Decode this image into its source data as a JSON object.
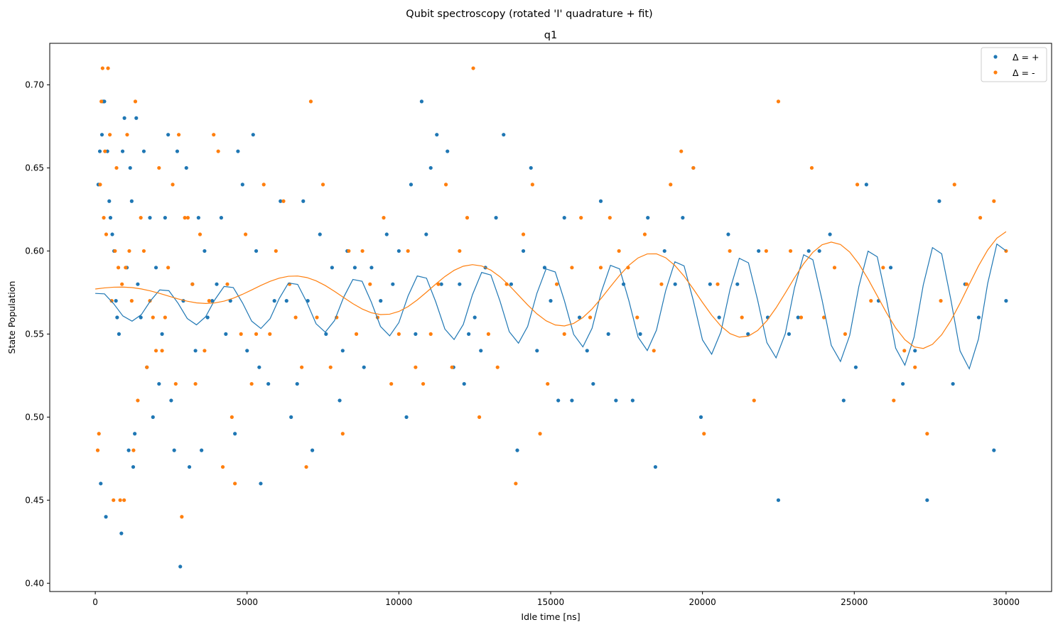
{
  "figure": {
    "suptitle": "Qubit spectroscopy (rotated 'I' quadrature + fit)"
  },
  "chart_data": {
    "type": "scatter",
    "title": "q1",
    "xlabel": "Idle time [ns]",
    "ylabel": "State Population",
    "xlim": [
      -1500,
      31500
    ],
    "ylim": [
      0.395,
      0.725
    ],
    "xticks": [
      0,
      5000,
      10000,
      15000,
      20000,
      25000,
      30000
    ],
    "yticks": [
      0.4,
      0.45,
      0.5,
      0.55,
      0.6,
      0.65,
      0.7
    ],
    "ytick_labels": [
      "0.40",
      "0.45",
      "0.50",
      "0.55",
      "0.60",
      "0.65",
      "0.70"
    ],
    "grid": false,
    "legend_position": "top-right",
    "colors": {
      "plus": "#1f77b4",
      "minus": "#ff7f0e"
    },
    "series": [
      {
        "name": "Δ = +",
        "kind": "points",
        "color": "#1f77b4",
        "points": [
          [
            100,
            0.64
          ],
          [
            150,
            0.66
          ],
          [
            180,
            0.46
          ],
          [
            220,
            0.67
          ],
          [
            260,
            0.69
          ],
          [
            300,
            0.69
          ],
          [
            350,
            0.44
          ],
          [
            400,
            0.66
          ],
          [
            460,
            0.63
          ],
          [
            500,
            0.62
          ],
          [
            560,
            0.61
          ],
          [
            620,
            0.6
          ],
          [
            680,
            0.57
          ],
          [
            720,
            0.56
          ],
          [
            780,
            0.55
          ],
          [
            860,
            0.43
          ],
          [
            900,
            0.66
          ],
          [
            960,
            0.68
          ],
          [
            1040,
            0.59
          ],
          [
            1100,
            0.48
          ],
          [
            1150,
            0.65
          ],
          [
            1200,
            0.63
          ],
          [
            1250,
            0.47
          ],
          [
            1300,
            0.49
          ],
          [
            1350,
            0.68
          ],
          [
            1400,
            0.58
          ],
          [
            1500,
            0.56
          ],
          [
            1600,
            0.66
          ],
          [
            1700,
            0.53
          ],
          [
            1800,
            0.62
          ],
          [
            1900,
            0.5
          ],
          [
            2000,
            0.59
          ],
          [
            2100,
            0.52
          ],
          [
            2200,
            0.55
          ],
          [
            2300,
            0.62
          ],
          [
            2400,
            0.67
          ],
          [
            2500,
            0.51
          ],
          [
            2600,
            0.48
          ],
          [
            2700,
            0.66
          ],
          [
            2800,
            0.41
          ],
          [
            2900,
            0.57
          ],
          [
            3000,
            0.65
          ],
          [
            3100,
            0.47
          ],
          [
            3200,
            0.58
          ],
          [
            3300,
            0.54
          ],
          [
            3400,
            0.62
          ],
          [
            3500,
            0.48
          ],
          [
            3600,
            0.6
          ],
          [
            3700,
            0.56
          ],
          [
            3850,
            0.57
          ],
          [
            4000,
            0.58
          ],
          [
            4150,
            0.62
          ],
          [
            4300,
            0.55
          ],
          [
            4450,
            0.57
          ],
          [
            4600,
            0.49
          ],
          [
            4700,
            0.66
          ],
          [
            4850,
            0.64
          ],
          [
            5000,
            0.54
          ],
          [
            5200,
            0.67
          ],
          [
            5300,
            0.6
          ],
          [
            5400,
            0.53
          ],
          [
            5450,
            0.46
          ],
          [
            5700,
            0.52
          ],
          [
            5900,
            0.57
          ],
          [
            6100,
            0.63
          ],
          [
            6300,
            0.57
          ],
          [
            6450,
            0.5
          ],
          [
            6650,
            0.52
          ],
          [
            6850,
            0.63
          ],
          [
            7000,
            0.57
          ],
          [
            7150,
            0.48
          ],
          [
            7400,
            0.61
          ],
          [
            7600,
            0.55
          ],
          [
            7800,
            0.59
          ],
          [
            8050,
            0.51
          ],
          [
            8150,
            0.54
          ],
          [
            8300,
            0.6
          ],
          [
            8550,
            0.59
          ],
          [
            8850,
            0.53
          ],
          [
            9100,
            0.59
          ],
          [
            9400,
            0.57
          ],
          [
            9600,
            0.61
          ],
          [
            9800,
            0.58
          ],
          [
            10000,
            0.6
          ],
          [
            10250,
            0.5
          ],
          [
            10400,
            0.64
          ],
          [
            10550,
            0.55
          ],
          [
            10750,
            0.69
          ],
          [
            10900,
            0.61
          ],
          [
            11050,
            0.65
          ],
          [
            11250,
            0.67
          ],
          [
            11400,
            0.58
          ],
          [
            11600,
            0.66
          ],
          [
            11800,
            0.53
          ],
          [
            12000,
            0.58
          ],
          [
            12150,
            0.52
          ],
          [
            12300,
            0.55
          ],
          [
            12500,
            0.56
          ],
          [
            12700,
            0.54
          ],
          [
            12850,
            0.59
          ],
          [
            13200,
            0.62
          ],
          [
            13450,
            0.67
          ],
          [
            13700,
            0.58
          ],
          [
            13900,
            0.48
          ],
          [
            14100,
            0.6
          ],
          [
            14350,
            0.65
          ],
          [
            14550,
            0.54
          ],
          [
            14800,
            0.59
          ],
          [
            15000,
            0.57
          ],
          [
            15250,
            0.51
          ],
          [
            15450,
            0.62
          ],
          [
            15700,
            0.51
          ],
          [
            15950,
            0.56
          ],
          [
            16200,
            0.54
          ],
          [
            16400,
            0.52
          ],
          [
            16650,
            0.63
          ],
          [
            16900,
            0.55
          ],
          [
            17150,
            0.51
          ],
          [
            17400,
            0.58
          ],
          [
            17700,
            0.51
          ],
          [
            17950,
            0.55
          ],
          [
            18200,
            0.62
          ],
          [
            18450,
            0.47
          ],
          [
            18750,
            0.6
          ],
          [
            19100,
            0.58
          ],
          [
            19350,
            0.62
          ],
          [
            19700,
            0.65
          ],
          [
            19950,
            0.5
          ],
          [
            20250,
            0.58
          ],
          [
            20550,
            0.56
          ],
          [
            20850,
            0.61
          ],
          [
            21150,
            0.58
          ],
          [
            21500,
            0.55
          ],
          [
            21850,
            0.6
          ],
          [
            22150,
            0.56
          ],
          [
            22500,
            0.45
          ],
          [
            22850,
            0.55
          ],
          [
            23150,
            0.56
          ],
          [
            23500,
            0.6
          ],
          [
            23850,
            0.6
          ],
          [
            24200,
            0.61
          ],
          [
            24650,
            0.51
          ],
          [
            25050,
            0.53
          ],
          [
            25400,
            0.64
          ],
          [
            25800,
            0.57
          ],
          [
            26200,
            0.59
          ],
          [
            26600,
            0.52
          ],
          [
            27000,
            0.54
          ],
          [
            27400,
            0.45
          ],
          [
            27800,
            0.63
          ],
          [
            28250,
            0.52
          ],
          [
            28650,
            0.58
          ],
          [
            29100,
            0.56
          ],
          [
            29600,
            0.48
          ],
          [
            30000,
            0.57
          ]
        ]
      },
      {
        "name": "Δ = -",
        "kind": "points",
        "color": "#ff7f0e",
        "points": [
          [
            80,
            0.48
          ],
          [
            120,
            0.49
          ],
          [
            160,
            0.64
          ],
          [
            200,
            0.69
          ],
          [
            240,
            0.71
          ],
          [
            280,
            0.62
          ],
          [
            320,
            0.66
          ],
          [
            360,
            0.61
          ],
          [
            420,
            0.71
          ],
          [
            480,
            0.67
          ],
          [
            540,
            0.57
          ],
          [
            600,
            0.45
          ],
          [
            650,
            0.6
          ],
          [
            700,
            0.65
          ],
          [
            760,
            0.59
          ],
          [
            820,
            0.45
          ],
          [
            880,
            0.58
          ],
          [
            950,
            0.45
          ],
          [
            1000,
            0.59
          ],
          [
            1050,
            0.67
          ],
          [
            1120,
            0.6
          ],
          [
            1200,
            0.57
          ],
          [
            1260,
            0.48
          ],
          [
            1320,
            0.69
          ],
          [
            1400,
            0.51
          ],
          [
            1500,
            0.62
          ],
          [
            1600,
            0.6
          ],
          [
            1700,
            0.53
          ],
          [
            1800,
            0.57
          ],
          [
            1900,
            0.56
          ],
          [
            2000,
            0.54
          ],
          [
            2100,
            0.65
          ],
          [
            2200,
            0.54
          ],
          [
            2300,
            0.56
          ],
          [
            2400,
            0.59
          ],
          [
            2550,
            0.64
          ],
          [
            2650,
            0.52
          ],
          [
            2750,
            0.67
          ],
          [
            2850,
            0.44
          ],
          [
            2950,
            0.62
          ],
          [
            3050,
            0.62
          ],
          [
            3200,
            0.58
          ],
          [
            3300,
            0.52
          ],
          [
            3450,
            0.61
          ],
          [
            3600,
            0.54
          ],
          [
            3750,
            0.57
          ],
          [
            3900,
            0.67
          ],
          [
            4050,
            0.66
          ],
          [
            4200,
            0.47
          ],
          [
            4350,
            0.58
          ],
          [
            4500,
            0.5
          ],
          [
            4600,
            0.46
          ],
          [
            4800,
            0.55
          ],
          [
            4950,
            0.61
          ],
          [
            5150,
            0.52
          ],
          [
            5300,
            0.55
          ],
          [
            5550,
            0.64
          ],
          [
            5750,
            0.55
          ],
          [
            5950,
            0.6
          ],
          [
            6200,
            0.63
          ],
          [
            6400,
            0.58
          ],
          [
            6600,
            0.56
          ],
          [
            6800,
            0.53
          ],
          [
            6950,
            0.47
          ],
          [
            7100,
            0.69
          ],
          [
            7300,
            0.56
          ],
          [
            7500,
            0.64
          ],
          [
            7750,
            0.53
          ],
          [
            7950,
            0.56
          ],
          [
            8150,
            0.49
          ],
          [
            8350,
            0.6
          ],
          [
            8600,
            0.55
          ],
          [
            8800,
            0.6
          ],
          [
            9050,
            0.58
          ],
          [
            9300,
            0.56
          ],
          [
            9500,
            0.62
          ],
          [
            9750,
            0.52
          ],
          [
            10000,
            0.55
          ],
          [
            10300,
            0.6
          ],
          [
            10550,
            0.53
          ],
          [
            10800,
            0.52
          ],
          [
            11050,
            0.55
          ],
          [
            11300,
            0.58
          ],
          [
            11550,
            0.64
          ],
          [
            11750,
            0.53
          ],
          [
            12000,
            0.6
          ],
          [
            12250,
            0.62
          ],
          [
            12450,
            0.71
          ],
          [
            12650,
            0.5
          ],
          [
            12950,
            0.55
          ],
          [
            13250,
            0.53
          ],
          [
            13550,
            0.58
          ],
          [
            13850,
            0.46
          ],
          [
            14100,
            0.61
          ],
          [
            14400,
            0.64
          ],
          [
            14650,
            0.49
          ],
          [
            14900,
            0.52
          ],
          [
            15200,
            0.58
          ],
          [
            15450,
            0.55
          ],
          [
            15700,
            0.59
          ],
          [
            16000,
            0.62
          ],
          [
            16300,
            0.56
          ],
          [
            16650,
            0.59
          ],
          [
            16950,
            0.62
          ],
          [
            17250,
            0.6
          ],
          [
            17550,
            0.59
          ],
          [
            17850,
            0.56
          ],
          [
            18100,
            0.61
          ],
          [
            18400,
            0.54
          ],
          [
            18650,
            0.58
          ],
          [
            18950,
            0.64
          ],
          [
            19300,
            0.66
          ],
          [
            19700,
            0.65
          ],
          [
            20050,
            0.49
          ],
          [
            20500,
            0.58
          ],
          [
            20900,
            0.6
          ],
          [
            21300,
            0.56
          ],
          [
            21700,
            0.51
          ],
          [
            22100,
            0.6
          ],
          [
            22500,
            0.69
          ],
          [
            22900,
            0.6
          ],
          [
            23250,
            0.56
          ],
          [
            23600,
            0.65
          ],
          [
            24000,
            0.56
          ],
          [
            24350,
            0.59
          ],
          [
            24700,
            0.55
          ],
          [
            25100,
            0.64
          ],
          [
            25550,
            0.57
          ],
          [
            25950,
            0.59
          ],
          [
            26300,
            0.51
          ],
          [
            26650,
            0.54
          ],
          [
            27000,
            0.53
          ],
          [
            27400,
            0.49
          ],
          [
            27850,
            0.57
          ],
          [
            28300,
            0.64
          ],
          [
            28700,
            0.58
          ],
          [
            29150,
            0.62
          ],
          [
            29600,
            0.63
          ],
          [
            30000,
            0.6
          ]
        ]
      },
      {
        "name": "",
        "kind": "fit",
        "color": "#1f77b4",
        "x_min": 0,
        "x_max": 30000,
        "n_samples": 100,
        "model": {
          "offset": 0.567,
          "amplitude_start": 0.008,
          "amplitude_growth_per_ns": 1.05e-06,
          "period_ns": 2120,
          "phase_rad": 1.2
        }
      },
      {
        "name": "",
        "kind": "fit",
        "color": "#ff7f0e",
        "x_min": 0,
        "x_max": 30000,
        "n_samples": 100,
        "model": {
          "offset": 0.575,
          "amplitude_start": 0.0025,
          "amplitude_growth_per_ns": 1.15e-06,
          "period_ns": 5920,
          "phase_rad": 1.0
        }
      }
    ]
  }
}
